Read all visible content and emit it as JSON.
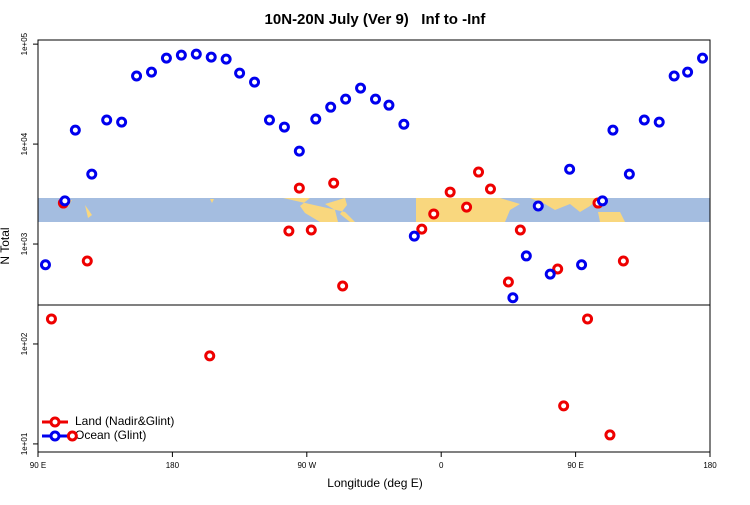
{
  "chart_data": {
    "type": "scatter",
    "title": "10N-20N July (Ver 9)   Inf to -Inf",
    "x_label": "Longitude (deg E)",
    "y_label": "N Total",
    "xlim": [
      90,
      540
    ],
    "ylim": [
      8.3,
      110000
    ],
    "log_y": true,
    "legend": "lower left",
    "xticks": [
      {
        "value": 90,
        "label": "90 E"
      },
      180,
      {
        "value": 270,
        "label": "90 W"
      },
      {
        "value": 360,
        "label": "0"
      },
      {
        "value": 450,
        "label": "90 E"
      },
      {
        "value": 540,
        "label": "180"
      }
    ],
    "yticks": [
      {
        "value": 10,
        "label": "1e+01"
      },
      {
        "value": 100,
        "label": "1e+02"
      },
      {
        "value": 1000,
        "label": "1e+03"
      },
      {
        "value": 10000,
        "label": "1e+04"
      },
      {
        "value": 100000,
        "label": "1e+05"
      }
    ],
    "series": [
      {
        "name": "Land (Nadir&Glint)",
        "color": "#ee0000",
        "x": [
          99,
          107,
          113,
          123,
          205,
          258,
          265,
          273,
          288,
          294,
          347,
          355,
          366,
          377,
          385,
          393,
          405,
          413,
          438,
          442,
          458,
          465,
          473,
          482
        ],
        "values": [
          178,
          2570,
          12,
          676,
          76,
          1350,
          3630,
          1380,
          4070,
          380,
          1410,
          2000,
          3310,
          2340,
          5250,
          3550,
          417,
          1380,
          562,
          24,
          178,
          2570,
          12.3,
          676
        ]
      },
      {
        "name": "Ocean (Glint)",
        "color": "#0000ee",
        "x": [
          95,
          108,
          115,
          126,
          136,
          146,
          156,
          166,
          176,
          186,
          196,
          206,
          216,
          225,
          235,
          245,
          255,
          265,
          276,
          286,
          296,
          306,
          316,
          325,
          335,
          342,
          408,
          417,
          425,
          433,
          446,
          454,
          468,
          475,
          486,
          496,
          506,
          516,
          525,
          535
        ],
        "values": [
          620,
          2700,
          13800,
          5000,
          17400,
          16600,
          48000,
          52500,
          72400,
          77600,
          79400,
          74100,
          70800,
          51300,
          41700,
          17400,
          14800,
          8500,
          17800,
          23400,
          28200,
          36300,
          28200,
          24500,
          15800,
          1200,
          290,
          760,
          2400,
          500,
          5600,
          620,
          2700,
          13800,
          5000,
          17400,
          16600,
          48000,
          52500,
          72400
        ]
      }
    ]
  }
}
